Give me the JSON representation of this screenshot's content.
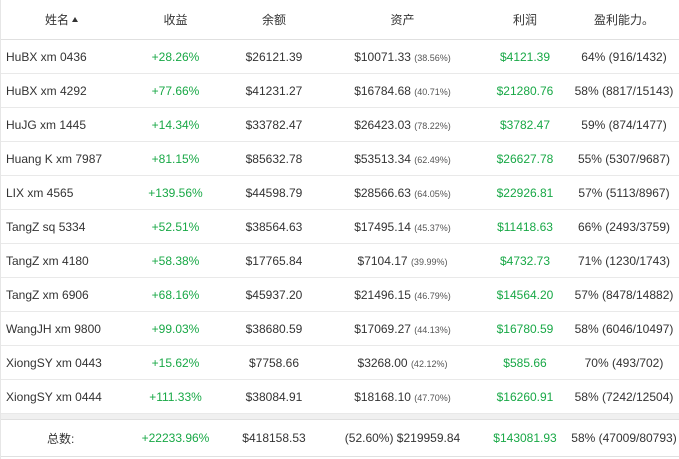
{
  "header": {
    "name": "姓名",
    "gain": "收益",
    "balance": "余额",
    "assets": "资产",
    "profit": "利润",
    "ability": "盈利能力。"
  },
  "rows": [
    {
      "name": "HuBX xm 0436",
      "gain": "+28.26%",
      "balance": "$26121.39",
      "assets": "$10071.33",
      "assets_pct": "(38.56%)",
      "profit": "$4121.39",
      "ability": "64% (916/1432)"
    },
    {
      "name": "HuBX xm 4292",
      "gain": "+77.66%",
      "balance": "$41231.27",
      "assets": "$16784.68",
      "assets_pct": "(40.71%)",
      "profit": "$21280.76",
      "ability": "58% (8817/15143)"
    },
    {
      "name": "HuJG xm 1445",
      "gain": "+14.34%",
      "balance": "$33782.47",
      "assets": "$26423.03",
      "assets_pct": "(78.22%)",
      "profit": "$3782.47",
      "ability": "59% (874/1477)"
    },
    {
      "name": "Huang K xm 7987",
      "gain": "+81.15%",
      "balance": "$85632.78",
      "assets": "$53513.34",
      "assets_pct": "(62.49%)",
      "profit": "$26627.78",
      "ability": "55% (5307/9687)"
    },
    {
      "name": "LIX xm 4565",
      "gain": "+139.56%",
      "balance": "$44598.79",
      "assets": "$28566.63",
      "assets_pct": "(64.05%)",
      "profit": "$22926.81",
      "ability": "57% (5113/8967)"
    },
    {
      "name": "TangZ sq 5334",
      "gain": "+52.51%",
      "balance": "$38564.63",
      "assets": "$17495.14",
      "assets_pct": "(45.37%)",
      "profit": "$11418.63",
      "ability": "66% (2493/3759)"
    },
    {
      "name": "TangZ xm 4180",
      "gain": "+58.38%",
      "balance": "$17765.84",
      "assets": "$7104.17",
      "assets_pct": "(39.99%)",
      "profit": "$4732.73",
      "ability": "71% (1230/1743)"
    },
    {
      "name": "TangZ xm 6906",
      "gain": "+68.16%",
      "balance": "$45937.20",
      "assets": "$21496.15",
      "assets_pct": "(46.79%)",
      "profit": "$14564.20",
      "ability": "57% (8478/14882)"
    },
    {
      "name": "WangJH xm 9800",
      "gain": "+99.03%",
      "balance": "$38680.59",
      "assets": "$17069.27",
      "assets_pct": "(44.13%)",
      "profit": "$16780.59",
      "ability": "58% (6046/10497)"
    },
    {
      "name": "XiongSY xm 0443",
      "gain": "+15.62%",
      "balance": "$7758.66",
      "assets": "$3268.00",
      "assets_pct": "(42.12%)",
      "profit": "$585.66",
      "ability": "70% (493/702)"
    },
    {
      "name": "XiongSY xm 0444",
      "gain": "+111.33%",
      "balance": "$38084.91",
      "assets": "$18168.10",
      "assets_pct": "(47.70%)",
      "profit": "$16260.91",
      "ability": "58% (7242/12504)"
    }
  ],
  "total": {
    "label": "总数:",
    "gain": "+22233.96%",
    "balance": "$418158.53",
    "assets": "(52.60%) $219959.84",
    "profit": "$143081.93",
    "ability": "58% (47009/80793)"
  },
  "colors": {
    "positive": "#18a846"
  }
}
